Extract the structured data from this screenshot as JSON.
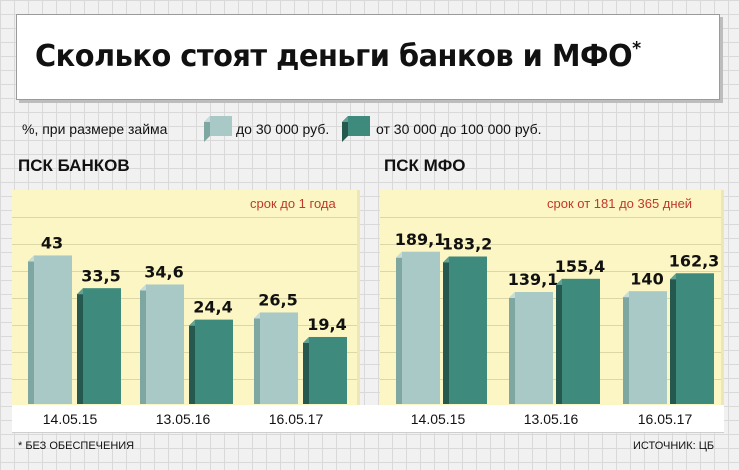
{
  "title": {
    "text": "Сколько стоят деньги банков и МФО",
    "mark": "*"
  },
  "legend": {
    "prefix": "%, при размере займа",
    "items": [
      {
        "label": "до 30 000 руб.",
        "color": "#a9c9c6"
      },
      {
        "label": "от 30 000 до 100 000 руб.",
        "color": "#3e8a7c"
      }
    ]
  },
  "footnote": "* БЕЗ ОБЕСПЕЧЕНИЯ",
  "source": "ИСТОЧНИК: ЦБ",
  "chart_data": [
    {
      "type": "bar",
      "title": "ПСК БАНКОВ",
      "annotation": "срок до 1 года",
      "categories": [
        "14.05.15",
        "13.05.16",
        "16.05.17"
      ],
      "series": [
        {
          "name": "до 30 000 руб.",
          "values": [
            43,
            34.6,
            26.5
          ],
          "labels": [
            "43",
            "34,6",
            "26,5"
          ],
          "color": "#a9c9c6"
        },
        {
          "name": "от 30 000 до 100 000 руб.",
          "values": [
            33.5,
            24.4,
            19.4
          ],
          "labels": [
            "33,5",
            "24,4",
            "19,4"
          ],
          "color": "#3e8a7c"
        }
      ],
      "ylim": [
        0,
        55
      ]
    },
    {
      "type": "bar",
      "title": "ПСК МФО",
      "annotation": "срок от 181 до 365 дней",
      "categories": [
        "14.05.15",
        "13.05.16",
        "16.05.17"
      ],
      "series": [
        {
          "name": "до 30 000 руб.",
          "values": [
            189.1,
            139.1,
            140
          ],
          "labels": [
            "189,1",
            "139,1",
            "140"
          ],
          "color": "#a9c9c6"
        },
        {
          "name": "от 30 000 до 100 000 руб.",
          "values": [
            183.2,
            155.4,
            162.3
          ],
          "labels": [
            "183,2",
            "155,4",
            "162,3"
          ],
          "color": "#3e8a7c"
        }
      ],
      "ylim": [
        0,
        236
      ]
    }
  ]
}
